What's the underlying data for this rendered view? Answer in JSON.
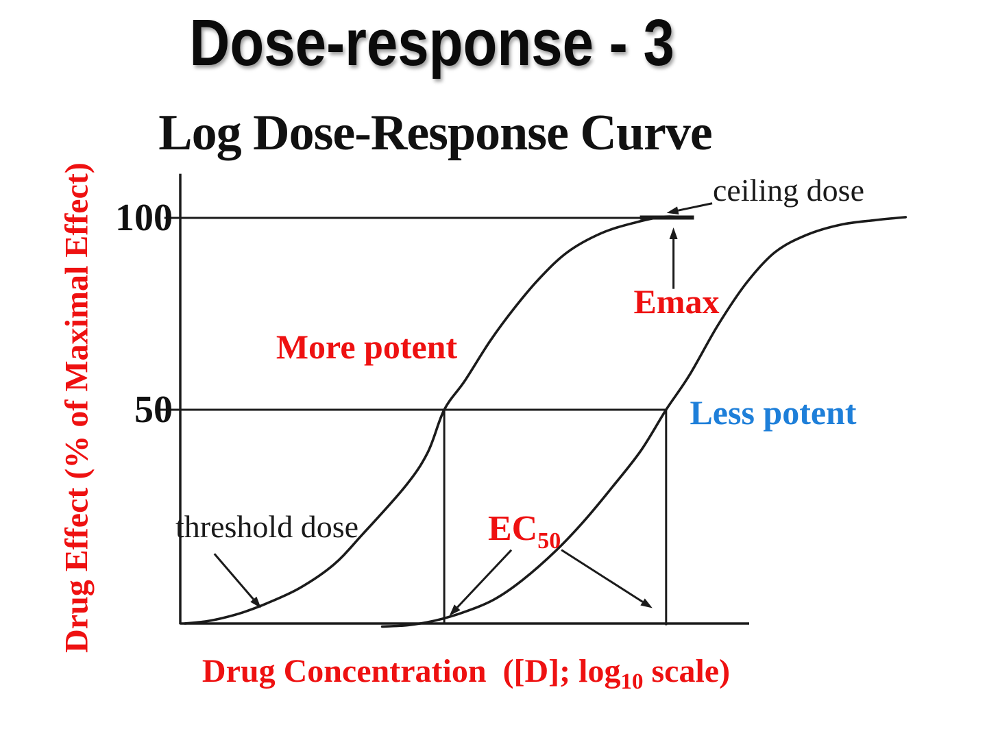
{
  "slide": {
    "title": "Dose-response - 3"
  },
  "chart_data": {
    "type": "line",
    "title": "Log Dose-Response Curve",
    "ylabel": "Drug Effect (% of Maximal Effect)",
    "xlabel": "Drug Concentration  ([D]; log10 scale)",
    "xlabel_parts": {
      "pre": "Drug Concentration  ([D]; log",
      "sub": "10",
      "post": " scale)"
    },
    "x_axis": {
      "scale": "log10",
      "unit_range": [
        0,
        10
      ],
      "tick_labels": []
    },
    "ylim": [
      0,
      100
    ],
    "yticks": [
      {
        "label": "100",
        "value": 100
      },
      {
        "label": "50",
        "value": 50
      }
    ],
    "grid": false,
    "legend": "none",
    "line_color": "#1b1b1b",
    "series": [
      {
        "name": "More potent",
        "color": "#1b1b1b",
        "points": [
          [
            0.08,
            0
          ],
          [
            0.45,
            0.5
          ],
          [
            0.75,
            1.3
          ],
          [
            1.1,
            2.6
          ],
          [
            1.5,
            4.6
          ],
          [
            2.1,
            8.3
          ],
          [
            2.7,
            13.8
          ],
          [
            3.2,
            20.8
          ],
          [
            3.95,
            32
          ],
          [
            4.35,
            40
          ],
          [
            4.64,
            50
          ],
          [
            5.0,
            57.5
          ],
          [
            5.45,
            68
          ],
          [
            5.9,
            77
          ],
          [
            6.3,
            84
          ],
          [
            6.8,
            91
          ],
          [
            7.4,
            96
          ],
          [
            8.0,
            98.8
          ],
          [
            8.5,
            100.3
          ],
          [
            8.95,
            100.1
          ]
        ]
      },
      {
        "name": "Less potent",
        "color": "#1b1b1b",
        "points": [
          [
            3.55,
            -0.7
          ],
          [
            4.0,
            -0.4
          ],
          [
            4.45,
            0.6
          ],
          [
            4.95,
            2.5
          ],
          [
            5.5,
            5.5
          ],
          [
            6.0,
            10
          ],
          [
            6.6,
            17
          ],
          [
            7.1,
            24
          ],
          [
            7.6,
            32
          ],
          [
            8.1,
            40.5
          ],
          [
            8.54,
            50
          ],
          [
            8.95,
            59
          ],
          [
            9.45,
            72
          ],
          [
            9.95,
            83
          ],
          [
            10.45,
            91
          ],
          [
            11.0,
            95.5
          ],
          [
            11.6,
            98.2
          ],
          [
            12.2,
            99.4
          ],
          [
            12.75,
            100.2
          ]
        ]
      }
    ],
    "reference_lines": [
      {
        "kind": "h",
        "y": 100,
        "from": -0.28,
        "to": 8.96,
        "w": 3
      },
      {
        "kind": "h",
        "y": 100.1,
        "from": 8.08,
        "to": 9.03,
        "w": 6
      },
      {
        "kind": "h",
        "y": 50,
        "from": -0.37,
        "to": 8.54,
        "w": 3
      },
      {
        "kind": "v",
        "x": 4.64,
        "from": 0,
        "to": 50,
        "w": 3
      },
      {
        "kind": "v",
        "x": 8.54,
        "from": -0.4,
        "to": 50,
        "w": 3
      }
    ],
    "annotations": [
      {
        "name": "ceiling-dose",
        "text": "ceiling dose",
        "color": "#1a1a1a",
        "arrows": [
          {
            "from": [
              9.35,
              103.8
            ],
            "to": [
              8.55,
              101.3
            ]
          }
        ]
      },
      {
        "name": "emax",
        "text": "Emax",
        "color": "#ee1111",
        "arrows": [
          {
            "from": [
              8.67,
              81.5
            ],
            "to": [
              8.67,
              97.5
            ]
          }
        ]
      },
      {
        "name": "more-potent",
        "text": "More potent",
        "color": "#ee1111",
        "arrows": []
      },
      {
        "name": "less-potent",
        "text": "Less potent",
        "color": "#1e7fd9",
        "arrows": []
      },
      {
        "name": "threshold-dose",
        "text": "threshold dose",
        "color": "#1a1a1a",
        "arrows": [
          {
            "from": [
              0.6,
              16.3
            ],
            "to": [
              1.42,
              3.6
            ]
          }
        ]
      },
      {
        "name": "ec50",
        "text": "EC",
        "sub": "50",
        "color": "#ee1111",
        "arrows": [
          {
            "from": [
              5.82,
              17.2
            ],
            "to": [
              4.73,
              1.8
            ]
          },
          {
            "from": [
              6.7,
              17.2
            ],
            "to": [
              8.3,
              3.6
            ]
          }
        ]
      }
    ]
  }
}
